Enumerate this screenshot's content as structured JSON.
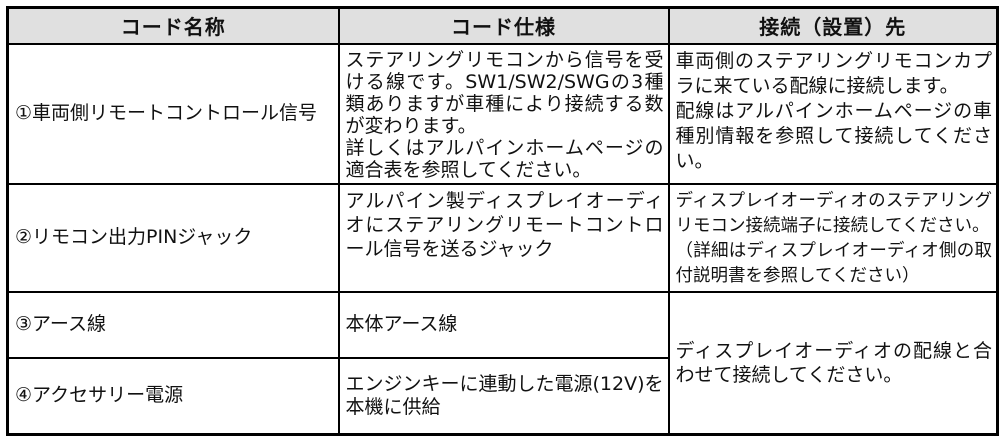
{
  "table": {
    "headers": {
      "code_name": "コード名称",
      "code_spec": "コード仕様",
      "destination": "接続（設置）先"
    },
    "rows": [
      {
        "name": "①車両側リモートコントロール信号",
        "spec": [
          "ステアリングリモコンから信号を受ける線です。SW1/SW2/SWGの3種類ありますが車種により接続する数が変わります。",
          "詳しくはアルパインホームページの適合表を参照してください。"
        ],
        "dest": [
          "車両側のステアリングリモコンカプラに来ている配線に接続します。",
          "配線はアルパインホームページの車種別情報を参照して接続してください。"
        ]
      },
      {
        "name": "②リモコン出力PINジャック",
        "spec": [
          "アルパイン製ディスプレイオーディオにステアリングリモートコントロール信号を送るジャック"
        ],
        "dest": [
          "ディスプレイオーディオのステアリングリモコン接続端子に接続してください。",
          "（詳細はディスプレイオーディオ側の取付説明書を参照してください）"
        ]
      },
      {
        "name": "③アース線",
        "spec": [
          "本体アース線"
        ]
      },
      {
        "name": "④アクセサリー電源",
        "spec": [
          "エンジンキーに連動した電源(12V)を本機に供給"
        ]
      }
    ],
    "merged_destination": "ディスプレイオーディオの配線と合わせて接続してください。",
    "colors": {
      "header_bg": "#e0e0e0",
      "border": "#000000",
      "text": "#111111"
    }
  }
}
